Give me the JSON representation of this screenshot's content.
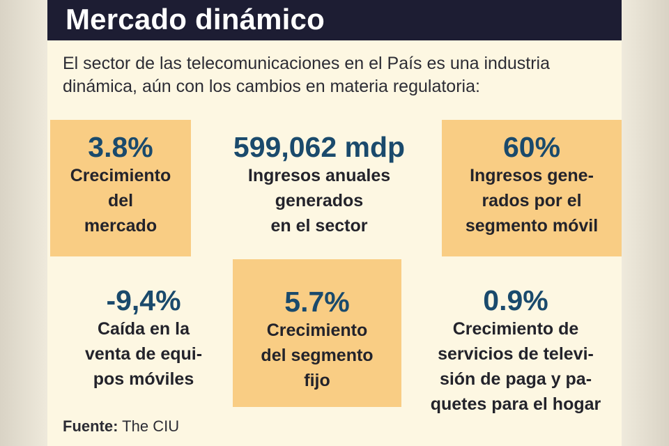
{
  "title": "Mercado dinámico",
  "intro": "El sector de las telecomunicaciones en el País es una industria dinámica, aún con los cambios en materia regulatoria:",
  "stats": [
    {
      "value": "3.8%",
      "label": "Crecimiento\ndel\nmercado"
    },
    {
      "value": "599,062 mdp",
      "label": "Ingresos anuales\ngenerados\nen el sector"
    },
    {
      "value": "60%",
      "label": "Ingresos gene-\nrados por el\nsegmento móvil"
    },
    {
      "value": "-9,4%",
      "label": "Caída en la\nventa de equi-\npos móviles"
    },
    {
      "value": "5.7%",
      "label": "Crecimiento\ndel segmento\nfijo"
    },
    {
      "value": "0.9%",
      "label": "Crecimiento de\nservicios de televi-\nsión de paga y pa-\nquetes para el hogar"
    }
  ],
  "source": {
    "label": "Fuente:",
    "value": "The CIU"
  },
  "colors": {
    "header": "#1d1d33",
    "highlight": "#f9cd84",
    "value": "#1a4a6c",
    "background": "#fdf7e2"
  }
}
